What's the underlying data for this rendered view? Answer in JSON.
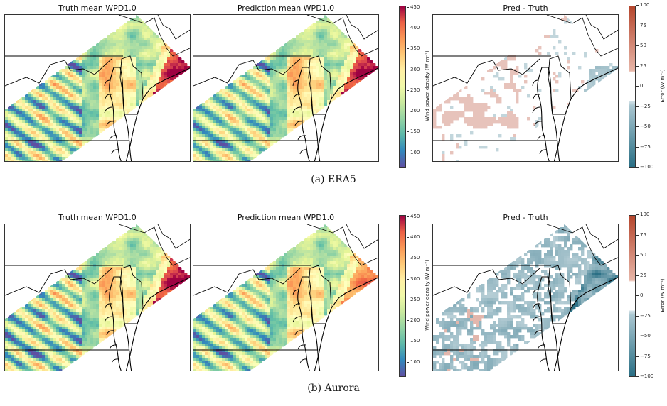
{
  "rows": [
    {
      "caption": "(a) ERA5",
      "panels": [
        {
          "title": "Truth mean WPD1.0",
          "kind": "truth",
          "coast_high": true
        },
        {
          "title": "Prediction mean WPD1.0",
          "kind": "pred",
          "coast_high": true
        },
        {
          "title": "Pred - Truth",
          "kind": "diff",
          "pattern": "sparse"
        }
      ]
    },
    {
      "caption": "(b) Aurora",
      "panels": [
        {
          "title": "Truth mean WPD1.0",
          "kind": "truth",
          "coast_high": true
        },
        {
          "title": "Prediction mean WPD1.0",
          "kind": "pred",
          "coast_high": false
        },
        {
          "title": "Pred - Truth",
          "kind": "diff",
          "pattern": "dense"
        }
      ]
    }
  ],
  "wpd_colorbar": {
    "label": "Wind power density (W m⁻²)",
    "ticks": [
      "100",
      "150",
      "200",
      "250",
      "300",
      "350",
      "400",
      "450"
    ],
    "range": [
      65,
      455
    ],
    "colormap": "Spectral_r"
  },
  "error_colorbar": {
    "label": "Error (W m⁻²)",
    "ticks": [
      "−100",
      "−75",
      "−50",
      "−25",
      "0",
      "25",
      "50",
      "75",
      "100"
    ],
    "range": [
      -100,
      100
    ],
    "colors": {
      "negative": "#2a6f85",
      "positive": "#b5462d",
      "neutral": "#ffffff"
    }
  }
}
